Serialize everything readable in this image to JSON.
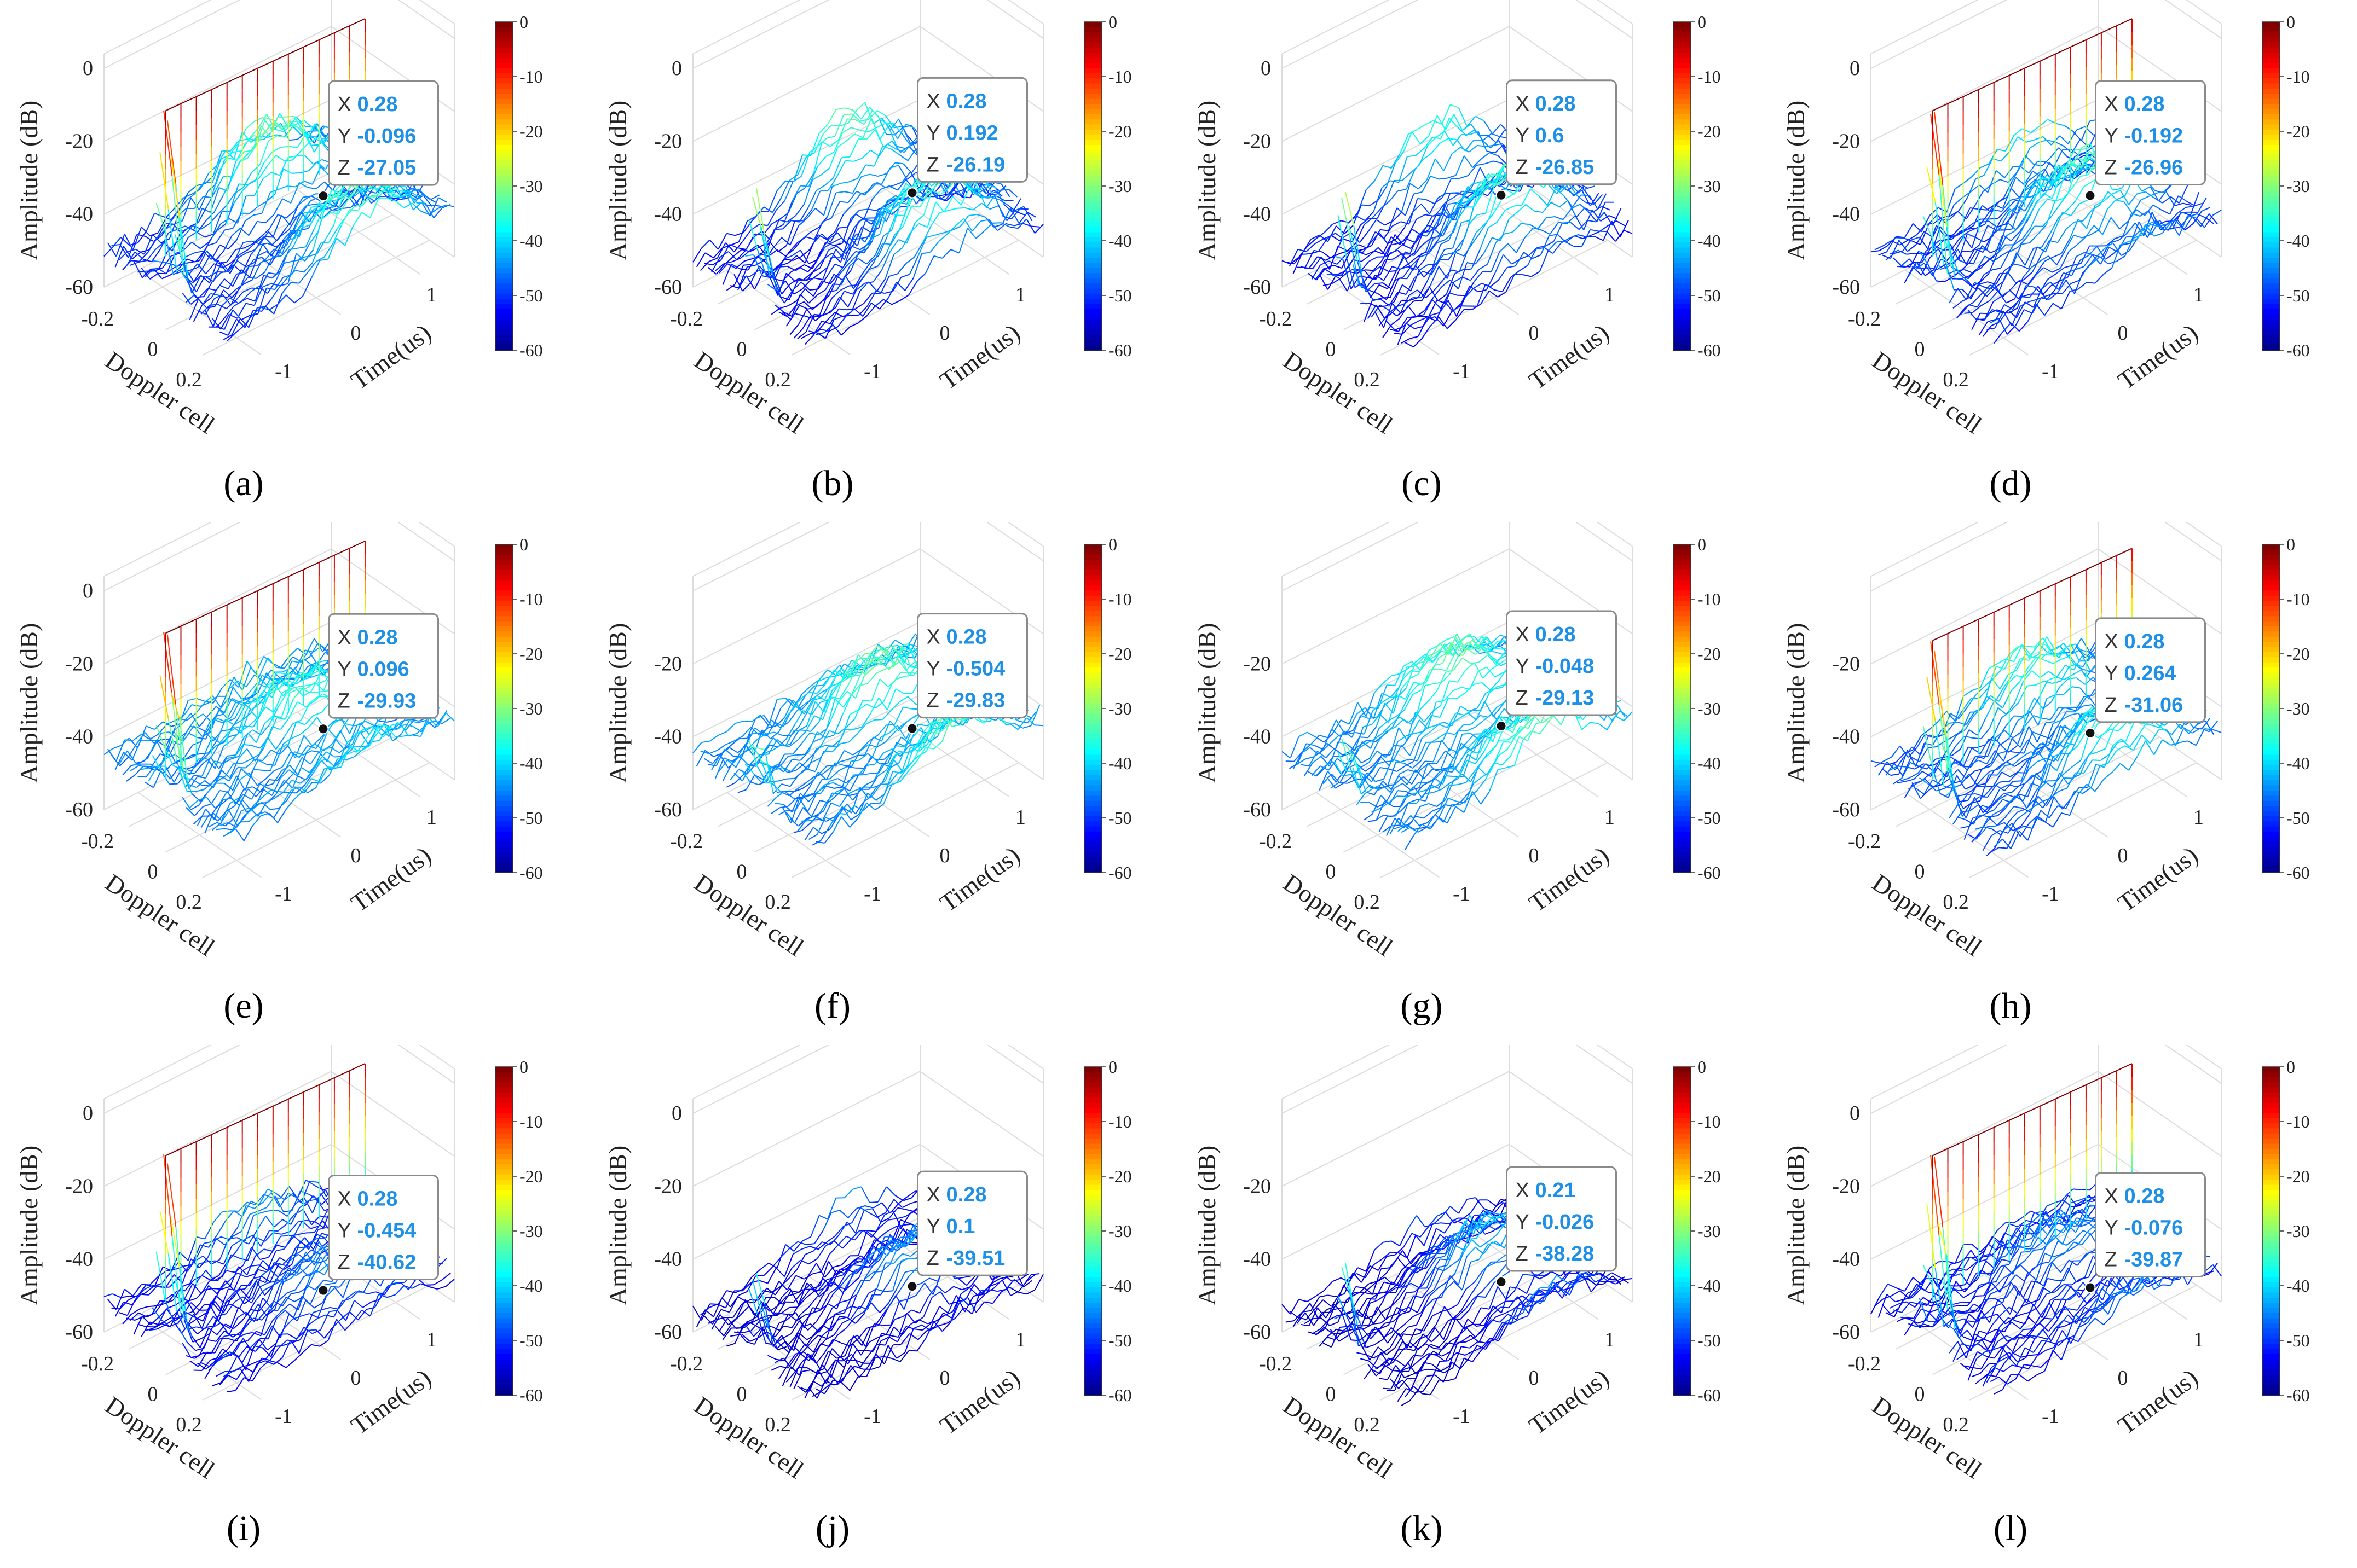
{
  "figure": {
    "colormap": {
      "name": "jet",
      "stops": [
        "#00007f",
        "#0000ff",
        "#007fff",
        "#00ffff",
        "#7fff7f",
        "#ffff00",
        "#ff7f00",
        "#ff0000",
        "#7f0000"
      ]
    },
    "colorbar_ticks": [
      "0",
      "-10",
      "-20",
      "-30",
      "-40",
      "-50",
      "-60"
    ]
  },
  "chart_data": [
    {
      "panel": "(a)",
      "type": "surface-waterfall",
      "zlabel": "Amplitude (dB)",
      "xlabel": "Doppler cell",
      "ylabel": "Time(us)",
      "zlim": [
        -60,
        0
      ],
      "xlim": [
        -0.28,
        0.28
      ],
      "ylim": [
        -1.5,
        1.5
      ],
      "zticks": [
        "0",
        "-20",
        "-40",
        "-60"
      ],
      "xticks": [
        "-0.2",
        "0",
        "0.2"
      ],
      "yticks": [
        "-1",
        "0",
        "1"
      ],
      "clim": [
        -60,
        0
      ],
      "peak_db": 0,
      "floor_db": -50,
      "ridge_db": -32,
      "datatip": {
        "X": "0.28",
        "Y": "-0.096",
        "Z": "-27.05"
      }
    },
    {
      "panel": "(b)",
      "type": "surface-waterfall",
      "zlabel": "Amplitude (dB)",
      "xlabel": "Doppler cell",
      "ylabel": "Time(us)",
      "zlim": [
        -60,
        0
      ],
      "xlim": [
        -0.28,
        0.28
      ],
      "ylim": [
        -1.5,
        1.5
      ],
      "zticks": [
        "0",
        "-20",
        "-40",
        "-60"
      ],
      "xticks": [
        "-0.2",
        "0",
        "0.2"
      ],
      "yticks": [
        "-1",
        "0",
        "1"
      ],
      "clim": [
        -60,
        0
      ],
      "peak_db": -20,
      "floor_db": -52,
      "ridge_db": -32,
      "datatip": {
        "X": "0.28",
        "Y": "0.192",
        "Z": "-26.19"
      }
    },
    {
      "panel": "(c)",
      "type": "surface-waterfall",
      "zlabel": "Amplitude (dB)",
      "xlabel": "Doppler cell",
      "ylabel": "Time(us)",
      "zlim": [
        -60,
        0
      ],
      "xlim": [
        -0.28,
        0.28
      ],
      "ylim": [
        -1.5,
        1.5
      ],
      "zticks": [
        "0",
        "-20",
        "-40",
        "-60"
      ],
      "xticks": [
        "-0.2",
        "0",
        "0.2"
      ],
      "yticks": [
        "-1",
        "0",
        "1"
      ],
      "clim": [
        -60,
        0
      ],
      "peak_db": -22,
      "floor_db": -52,
      "ridge_db": -33,
      "datatip": {
        "X": "0.28",
        "Y": "0.6",
        "Z": "-26.85"
      }
    },
    {
      "panel": "(d)",
      "type": "surface-waterfall",
      "zlabel": "Amplitude (dB)",
      "xlabel": "Doppler cell",
      "ylabel": "Time(us)",
      "zlim": [
        -60,
        0
      ],
      "xlim": [
        -0.28,
        0.28
      ],
      "ylim": [
        -1.5,
        1.5
      ],
      "zticks": [
        "0",
        "-20",
        "-40",
        "-60"
      ],
      "xticks": [
        "-0.2",
        "0",
        "0.2"
      ],
      "yticks": [
        "-1",
        "0",
        "1"
      ],
      "clim": [
        -60,
        0
      ],
      "peak_db": 0,
      "floor_db": -50,
      "ridge_db": -33,
      "datatip": {
        "X": "0.28",
        "Y": "-0.192",
        "Z": "-26.96"
      }
    },
    {
      "panel": "(e)",
      "type": "surface-waterfall",
      "zlabel": "Amplitude (dB)",
      "xlabel": "Doppler cell",
      "ylabel": "Time(us)",
      "zlim": [
        -60,
        0
      ],
      "xlim": [
        -0.28,
        0.28
      ],
      "ylim": [
        -1.5,
        1.5
      ],
      "zticks": [
        "0",
        "-20",
        "-40",
        "-60"
      ],
      "xticks": [
        "-0.2",
        "0",
        "0.2"
      ],
      "yticks": [
        "-1",
        "0",
        "1"
      ],
      "clim": [
        -60,
        0
      ],
      "peak_db": 0,
      "floor_db": -45,
      "ridge_db": -35,
      "datatip": {
        "X": "0.28",
        "Y": "0.096",
        "Z": "-29.93"
      }
    },
    {
      "panel": "(f)",
      "type": "surface-waterfall",
      "zlabel": "Amplitude (dB)",
      "xlabel": "Doppler cell",
      "ylabel": "Time(us)",
      "zlim": [
        -60,
        0
      ],
      "xlim": [
        -0.28,
        0.28
      ],
      "ylim": [
        -1.5,
        1.5
      ],
      "zticks": [
        "-20",
        "-40",
        "-60"
      ],
      "xticks": [
        "-0.2",
        "0",
        "0.2"
      ],
      "yticks": [
        "-1",
        "0",
        "1"
      ],
      "clim": [
        -60,
        0
      ],
      "peak_db": -28,
      "floor_db": -45,
      "ridge_db": -32,
      "datatip": {
        "X": "0.28",
        "Y": "-0.504",
        "Z": "-29.83"
      }
    },
    {
      "panel": "(g)",
      "type": "surface-waterfall",
      "zlabel": "Amplitude (dB)",
      "xlabel": "Doppler cell",
      "ylabel": "Time(us)",
      "zlim": [
        -60,
        0
      ],
      "xlim": [
        -0.28,
        0.28
      ],
      "ylim": [
        -1.5,
        1.5
      ],
      "zticks": [
        "-20",
        "-40",
        "-60"
      ],
      "xticks": [
        "-0.2",
        "0",
        "0.2"
      ],
      "yticks": [
        "-1",
        "0",
        "1"
      ],
      "clim": [
        -60,
        0
      ],
      "peak_db": -28,
      "floor_db": -45,
      "ridge_db": -32,
      "datatip": {
        "X": "0.28",
        "Y": "-0.048",
        "Z": "-29.13"
      }
    },
    {
      "panel": "(h)",
      "type": "surface-waterfall",
      "zlabel": "Amplitude (dB)",
      "xlabel": "Doppler cell",
      "ylabel": "Time(us)",
      "zlim": [
        -60,
        0
      ],
      "xlim": [
        -0.28,
        0.28
      ],
      "ylim": [
        -1.5,
        1.5
      ],
      "zticks": [
        "-20",
        "-40",
        "-60"
      ],
      "xticks": [
        "-0.2",
        "0",
        "0.2"
      ],
      "yticks": [
        "-1",
        "0",
        "1"
      ],
      "clim": [
        -60,
        0
      ],
      "peak_db": -2,
      "floor_db": -48,
      "ridge_db": -35,
      "datatip": {
        "X": "0.28",
        "Y": "0.264",
        "Z": "-31.06"
      }
    },
    {
      "panel": "(i)",
      "type": "surface-waterfall",
      "zlabel": "Amplitude (dB)",
      "xlabel": "Doppler cell",
      "ylabel": "Time(us)",
      "zlim": [
        -60,
        0
      ],
      "xlim": [
        -0.28,
        0.28
      ],
      "ylim": [
        -1.5,
        1.5
      ],
      "zticks": [
        "0",
        "-20",
        "-40",
        "-60"
      ],
      "xticks": [
        "-0.2",
        "0",
        "0.2"
      ],
      "yticks": [
        "-1",
        "0",
        "1"
      ],
      "clim": [
        -60,
        0
      ],
      "peak_db": 0,
      "floor_db": -52,
      "ridge_db": -44,
      "datatip": {
        "X": "0.28",
        "Y": "-0.454",
        "Z": "-40.62"
      }
    },
    {
      "panel": "(j)",
      "type": "surface-waterfall",
      "zlabel": "Amplitude (dB)",
      "xlabel": "Doppler cell",
      "ylabel": "Time(us)",
      "zlim": [
        -60,
        0
      ],
      "xlim": [
        -0.28,
        0.28
      ],
      "ylim": [
        -1.5,
        1.5
      ],
      "zticks": [
        "0",
        "-20",
        "-40",
        "-60"
      ],
      "xticks": [
        "-0.2",
        "0",
        "0.2"
      ],
      "yticks": [
        "-1",
        "0",
        "1"
      ],
      "clim": [
        -60,
        0
      ],
      "peak_db": -32,
      "floor_db": -55,
      "ridge_db": -42,
      "datatip": {
        "X": "0.28",
        "Y": "0.1",
        "Z": "-39.51"
      }
    },
    {
      "panel": "(k)",
      "type": "surface-waterfall",
      "zlabel": "Amplitude (dB)",
      "xlabel": "Doppler cell",
      "ylabel": "Time(us)",
      "zlim": [
        -60,
        0
      ],
      "xlim": [
        -0.28,
        0.28
      ],
      "ylim": [
        -1.5,
        1.5
      ],
      "zticks": [
        "-20",
        "-40",
        "-60"
      ],
      "xticks": [
        "-0.2",
        "0",
        "0.2"
      ],
      "yticks": [
        "-1",
        "0",
        "1"
      ],
      "clim": [
        -60,
        0
      ],
      "peak_db": -30,
      "floor_db": -55,
      "ridge_db": -40,
      "datatip": {
        "X": "0.21",
        "Y": "-0.026",
        "Z": "-38.28"
      }
    },
    {
      "panel": "(l)",
      "type": "surface-waterfall",
      "zlabel": "Amplitude (dB)",
      "xlabel": "Doppler cell",
      "ylabel": "Time(us)",
      "zlim": [
        -60,
        0
      ],
      "xlim": [
        -0.28,
        0.28
      ],
      "ylim": [
        -1.5,
        1.5
      ],
      "zticks": [
        "0",
        "-20",
        "-40",
        "-60"
      ],
      "xticks": [
        "-0.2",
        "0",
        "0.2"
      ],
      "yticks": [
        "-1",
        "0",
        "1"
      ],
      "clim": [
        -60,
        0
      ],
      "peak_db": 0,
      "floor_db": -52,
      "ridge_db": -44,
      "datatip": {
        "X": "0.28",
        "Y": "-0.076",
        "Z": "-39.87"
      }
    }
  ]
}
